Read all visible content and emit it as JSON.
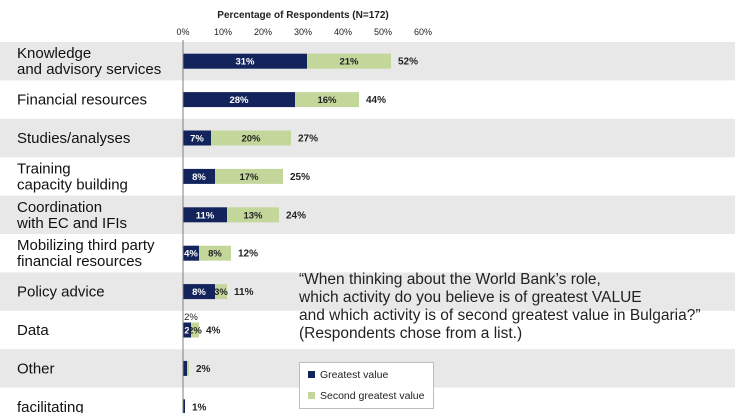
{
  "chart_data": {
    "type": "bar",
    "stacked": true,
    "orientation": "horizontal",
    "title": "Percentage of Respondents (N=172)",
    "xlim": [
      0,
      60
    ],
    "x_ticks": [
      "0%",
      "10%",
      "20%",
      "30%",
      "40%",
      "50%",
      "60%"
    ],
    "categories": [
      "Knowledge\nand advisory services",
      "Financial resources",
      "Studies/analyses",
      "Training\ncapacity building",
      "Coordination\nwith EC and IFIs",
      "Mobilizing third party\nfinancial resources",
      "Policy advice",
      "Data",
      "Other",
      "facilitating"
    ],
    "series": [
      {
        "name": "Greatest value",
        "color": "#13245c",
        "values": [
          31,
          28,
          7,
          8,
          11,
          4,
          8,
          2,
          1,
          0.5
        ],
        "labels": [
          "31%",
          "28%",
          "7%",
          "8%",
          "11%",
          "4%",
          "8%",
          "2",
          "",
          ""
        ]
      },
      {
        "name": "Second greatest value",
        "color": "#c4d79b",
        "values": [
          21,
          16,
          20,
          17,
          13,
          8,
          3,
          2,
          0.5,
          0
        ],
        "labels": [
          "21%",
          "16%",
          "20%",
          "17%",
          "13%",
          "8%",
          "3%",
          "2%",
          "",
          ""
        ]
      }
    ],
    "totals": [
      "52%",
      "44%",
      "27%",
      "25%",
      "24%",
      "12%",
      "11%",
      "4%",
      "2%",
      "1%"
    ],
    "annotation": "2%",
    "band_color": "#e8e8e8",
    "quote": "“When thinking about the World Bank’s role,\nwhich activity do you believe is of greatest VALUE\nand which activity is of second greatest value in Bulgaria?”\n(Respondents chose from a list.)",
    "legend_position": "bottom-center"
  }
}
